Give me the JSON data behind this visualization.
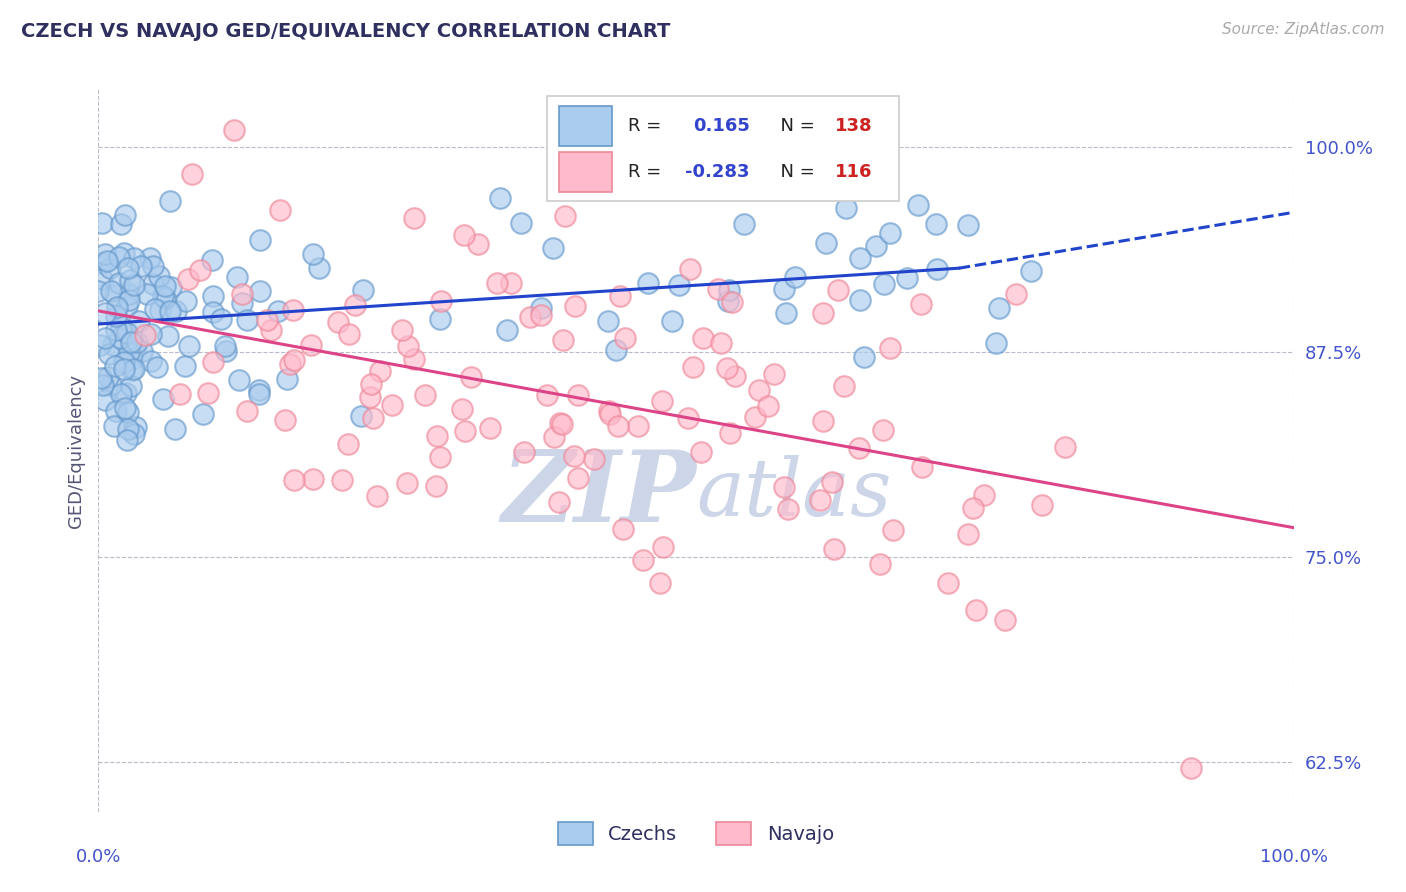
{
  "title": "CZECH VS NAVAJO GED/EQUIVALENCY CORRELATION CHART",
  "source": "Source: ZipAtlas.com",
  "ylabel": "GED/Equivalency",
  "x_min": 0.0,
  "x_max": 1.0,
  "y_min": 0.595,
  "y_max": 1.035,
  "yticks": [
    0.625,
    0.75,
    0.875,
    1.0
  ],
  "ytick_labels": [
    "62.5%",
    "75.0%",
    "87.5%",
    "100.0%"
  ],
  "czech_R": 0.165,
  "czech_N": 138,
  "navajo_R": -0.283,
  "navajo_N": 116,
  "czech_face_color": "#aaccee",
  "czech_edge_color": "#6699cc",
  "navajo_face_color": "#ffbbcc",
  "navajo_edge_color": "#ee8899",
  "trend_blue": "#2244cc",
  "trend_pink": "#dd4488",
  "background_color": "#ffffff",
  "grid_color": "#bbbbcc",
  "title_color": "#303060",
  "axis_label_color": "#4455cc",
  "legend_R_color": "#3344cc",
  "legend_N_color": "#cc2222",
  "watermark_color": "#cdd5e8",
  "czech_line_y0": 0.892,
  "czech_line_solid_x1": 0.72,
  "czech_line_y1_solid": 0.926,
  "czech_line_y1_dashed": 0.96,
  "navajo_line_y0": 0.9,
  "navajo_line_y1": 0.768,
  "dot_size": 220,
  "dot_linewidth": 1.5,
  "dot_alpha": 0.65
}
